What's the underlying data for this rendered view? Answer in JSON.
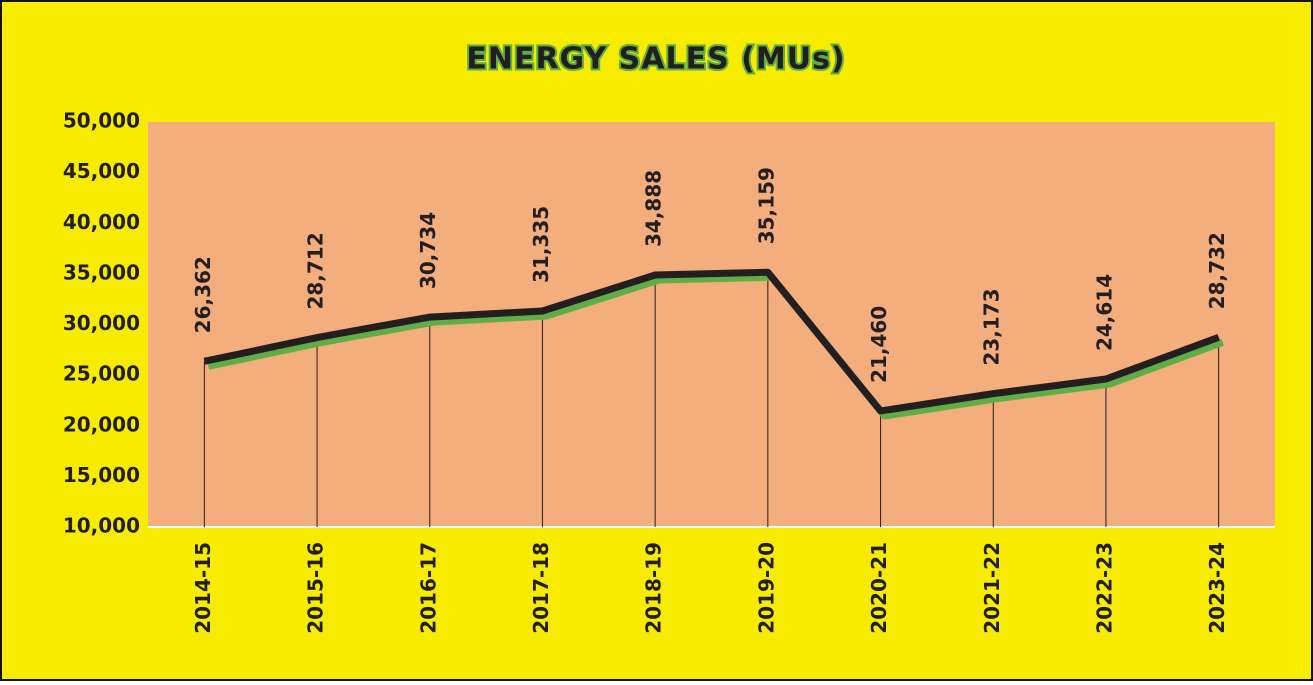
{
  "chart_data": {
    "type": "line",
    "title": "ENERGY SALES (MUs)",
    "categories": [
      "2014-15",
      "2015-16",
      "2016-17",
      "2017-18",
      "2018-19",
      "2019-20",
      "2020-21",
      "2021-22",
      "2022-23",
      "2023-24"
    ],
    "values": [
      26362,
      28712,
      30734,
      31335,
      34888,
      35159,
      21460,
      23173,
      24614,
      28732
    ],
    "value_labels": [
      "26,362",
      "28,712",
      "30,734",
      "31,335",
      "34,888",
      "35,159",
      "21,460",
      "23,173",
      "24,614",
      "28,732"
    ],
    "color": "#231f20",
    "shadow_color": "#5fae45",
    "plot_color": "#f4ad7c",
    "background_color": "#f7ec00",
    "ylim": [
      10000,
      50000
    ],
    "yticks": [
      {
        "value": 10000,
        "label": "10,000"
      },
      {
        "value": 15000,
        "label": "15,000"
      },
      {
        "value": 20000,
        "label": "20,000"
      },
      {
        "value": 25000,
        "label": "25,000"
      },
      {
        "value": 30000,
        "label": "30,000"
      },
      {
        "value": 35000,
        "label": "35,000"
      },
      {
        "value": 40000,
        "label": "40,000"
      },
      {
        "value": 45000,
        "label": "45,000"
      },
      {
        "value": 50000,
        "label": "50,000"
      }
    ],
    "grid": false,
    "drop_lines": true
  }
}
